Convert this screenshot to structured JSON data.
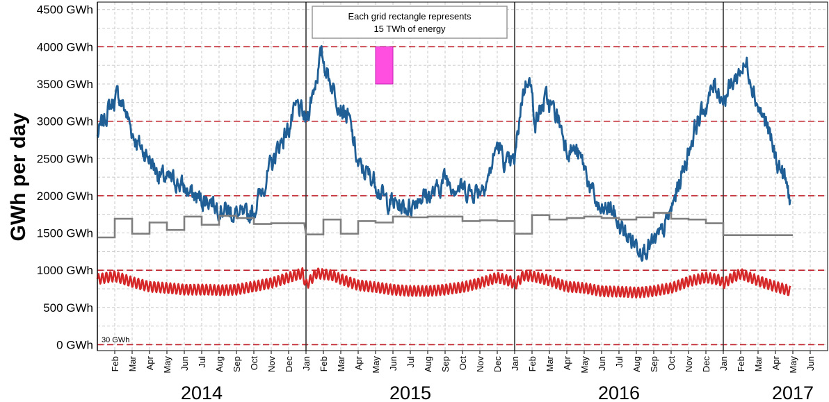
{
  "chart_data": {
    "type": "line",
    "title": "",
    "ylabel": "GWh per day",
    "xlabel": "",
    "ylim": [
      -80,
      4600
    ],
    "xlim_months": [
      0,
      42
    ],
    "grid": true,
    "yticks": [
      {
        "value": 0,
        "label": "0 GWh"
      },
      {
        "value": 500,
        "label": "500 GWh"
      },
      {
        "value": 1000,
        "label": "1000 GWh"
      },
      {
        "value": 1500,
        "label": "1500 GWh"
      },
      {
        "value": 2000,
        "label": "2000 GWh"
      },
      {
        "value": 2500,
        "label": "2500 GWh"
      },
      {
        "value": 3000,
        "label": "3000 GWh"
      },
      {
        "value": 3500,
        "label": "3500 GWh"
      },
      {
        "value": 4000,
        "label": "4000 GWh"
      },
      {
        "value": 4500,
        "label": "4500 GWh"
      }
    ],
    "red_dashed_lines": [
      0,
      1000,
      2000,
      3000,
      4000
    ],
    "year_dividers": [
      0,
      12,
      24,
      36
    ],
    "month_ticks": [
      {
        "m": 1,
        "label": "Feb"
      },
      {
        "m": 2,
        "label": "Mar"
      },
      {
        "m": 3,
        "label": "Apr"
      },
      {
        "m": 4,
        "label": "May"
      },
      {
        "m": 5,
        "label": "Jun"
      },
      {
        "m": 6,
        "label": "Jul"
      },
      {
        "m": 7,
        "label": "Aug"
      },
      {
        "m": 8,
        "label": "Sep"
      },
      {
        "m": 9,
        "label": "Oct"
      },
      {
        "m": 10,
        "label": "Nov"
      },
      {
        "m": 11,
        "label": "Dec"
      },
      {
        "m": 12,
        "label": "Jan"
      },
      {
        "m": 13,
        "label": "Feb"
      },
      {
        "m": 14,
        "label": "Mar"
      },
      {
        "m": 15,
        "label": "Apr"
      },
      {
        "m": 16,
        "label": "May"
      },
      {
        "m": 17,
        "label": "Jun"
      },
      {
        "m": 18,
        "label": "Jul"
      },
      {
        "m": 19,
        "label": "Aug"
      },
      {
        "m": 20,
        "label": "Sep"
      },
      {
        "m": 21,
        "label": "Oct"
      },
      {
        "m": 22,
        "label": "Nov"
      },
      {
        "m": 23,
        "label": "Dec"
      },
      {
        "m": 24,
        "label": "Jan"
      },
      {
        "m": 25,
        "label": "Feb"
      },
      {
        "m": 26,
        "label": "Mar"
      },
      {
        "m": 27,
        "label": "Apr"
      },
      {
        "m": 28,
        "label": "May"
      },
      {
        "m": 29,
        "label": "Jun"
      },
      {
        "m": 30,
        "label": "Jul"
      },
      {
        "m": 31,
        "label": "Aug"
      },
      {
        "m": 32,
        "label": "Sep"
      },
      {
        "m": 33,
        "label": "Oct"
      },
      {
        "m": 34,
        "label": "Nov"
      },
      {
        "m": 35,
        "label": "Dec"
      },
      {
        "m": 36,
        "label": "Jan"
      },
      {
        "m": 37,
        "label": "Feb"
      },
      {
        "m": 38,
        "label": "Mar"
      },
      {
        "m": 39,
        "label": "Apr"
      },
      {
        "m": 40,
        "label": "May"
      },
      {
        "m": 41,
        "label": "Jun"
      }
    ],
    "year_labels": [
      {
        "m": 6,
        "label": "2014"
      },
      {
        "m": 18,
        "label": "2015"
      },
      {
        "m": 30,
        "label": "2016"
      },
      {
        "m": 40,
        "label": "2017"
      }
    ],
    "annotation": {
      "line1": "Each grid rectangle represents",
      "line2": "15 TWh of energy"
    },
    "corner_note": "30 GWh",
    "highlight_rect": {
      "x0": 16.0,
      "x1": 17.0,
      "y0": 3500,
      "y1": 4000,
      "color": "#ff4fe0"
    },
    "series": [
      {
        "color": "#1f5f96",
        "kind": "noisy",
        "noise": 220,
        "points": [
          [
            0,
            2800
          ],
          [
            0.7,
            3200
          ],
          [
            1.2,
            3350
          ],
          [
            1.6,
            3150
          ],
          [
            2.1,
            2800
          ],
          [
            2.5,
            2650
          ],
          [
            3,
            2500
          ],
          [
            3.5,
            2300
          ],
          [
            4,
            2200
          ],
          [
            4.5,
            2200
          ],
          [
            5,
            2100
          ],
          [
            5.5,
            2000
          ],
          [
            6,
            1950
          ],
          [
            6.5,
            1950
          ],
          [
            7,
            1850
          ],
          [
            7.5,
            1800
          ],
          [
            8,
            1750
          ],
          [
            8.5,
            1700
          ],
          [
            9,
            1800
          ],
          [
            9.5,
            2100
          ],
          [
            10,
            2400
          ],
          [
            10.5,
            2700
          ],
          [
            11,
            2900
          ],
          [
            11.5,
            3200
          ],
          [
            12,
            3000
          ],
          [
            12.5,
            3500
          ],
          [
            12.9,
            3900
          ],
          [
            13.3,
            3600
          ],
          [
            14,
            3200
          ],
          [
            14.5,
            3000
          ],
          [
            15,
            2400
          ],
          [
            15.5,
            2300
          ],
          [
            16,
            2200
          ],
          [
            16.5,
            1950
          ],
          [
            17,
            1900
          ],
          [
            17.5,
            1850
          ],
          [
            18,
            1850
          ],
          [
            18.5,
            2000
          ],
          [
            19,
            2000
          ],
          [
            19.5,
            2050
          ],
          [
            20,
            2250
          ],
          [
            20.5,
            2150
          ],
          [
            21,
            2100
          ],
          [
            21.5,
            2050
          ],
          [
            22,
            2100
          ],
          [
            22.5,
            2250
          ],
          [
            23,
            2700
          ],
          [
            23.5,
            2400
          ],
          [
            24,
            2450
          ],
          [
            24.4,
            3300
          ],
          [
            24.8,
            3650
          ],
          [
            25.2,
            3000
          ],
          [
            25.8,
            3300
          ],
          [
            26.5,
            3050
          ],
          [
            27,
            2650
          ],
          [
            27.5,
            2600
          ],
          [
            28,
            2400
          ],
          [
            28.5,
            2000
          ],
          [
            29,
            1750
          ],
          [
            29.5,
            1850
          ],
          [
            30,
            1600
          ],
          [
            30.5,
            1450
          ],
          [
            31,
            1350
          ],
          [
            31.5,
            1300
          ],
          [
            32,
            1350
          ],
          [
            32.5,
            1500
          ],
          [
            33,
            1800
          ],
          [
            33.5,
            2200
          ],
          [
            34,
            2600
          ],
          [
            34.5,
            3000
          ],
          [
            35,
            3200
          ],
          [
            35.5,
            3500
          ],
          [
            36,
            3300
          ],
          [
            36.5,
            3500
          ],
          [
            37,
            3700
          ],
          [
            37.4,
            3750
          ],
          [
            38,
            3200
          ],
          [
            38.5,
            2950
          ],
          [
            39,
            2500
          ],
          [
            39.5,
            2250
          ],
          [
            39.85,
            1950
          ]
        ]
      },
      {
        "color": "#7f7f7f",
        "kind": "step",
        "points": [
          [
            0,
            1440
          ],
          [
            1,
            1440
          ],
          [
            1,
            1690
          ],
          [
            2,
            1690
          ],
          [
            2,
            1490
          ],
          [
            3,
            1490
          ],
          [
            3,
            1640
          ],
          [
            4,
            1640
          ],
          [
            4,
            1540
          ],
          [
            5,
            1540
          ],
          [
            5,
            1720
          ],
          [
            6,
            1720
          ],
          [
            6,
            1610
          ],
          [
            7,
            1610
          ],
          [
            7,
            1730
          ],
          [
            8,
            1730
          ],
          [
            8,
            1700
          ],
          [
            9,
            1700
          ],
          [
            9,
            1620
          ],
          [
            10,
            1620
          ],
          [
            10,
            1630
          ],
          [
            11.9,
            1630
          ],
          [
            12,
            1480
          ],
          [
            13,
            1480
          ],
          [
            13,
            1680
          ],
          [
            14,
            1680
          ],
          [
            14,
            1490
          ],
          [
            15,
            1490
          ],
          [
            15,
            1660
          ],
          [
            16,
            1660
          ],
          [
            16,
            1640
          ],
          [
            17,
            1640
          ],
          [
            17,
            1720
          ],
          [
            18,
            1720
          ],
          [
            18,
            1710
          ],
          [
            19,
            1710
          ],
          [
            19,
            1720
          ],
          [
            21,
            1720
          ],
          [
            21,
            1660
          ],
          [
            22,
            1660
          ],
          [
            22,
            1670
          ],
          [
            23,
            1670
          ],
          [
            23,
            1660
          ],
          [
            24,
            1660
          ],
          [
            24,
            1490
          ],
          [
            25,
            1490
          ],
          [
            25,
            1740
          ],
          [
            26,
            1740
          ],
          [
            26,
            1680
          ],
          [
            27,
            1680
          ],
          [
            27,
            1700
          ],
          [
            28,
            1700
          ],
          [
            28,
            1720
          ],
          [
            29,
            1720
          ],
          [
            29,
            1700
          ],
          [
            30,
            1700
          ],
          [
            30,
            1680
          ],
          [
            31,
            1680
          ],
          [
            31,
            1710
          ],
          [
            32,
            1710
          ],
          [
            32,
            1770
          ],
          [
            33,
            1770
          ],
          [
            33,
            1690
          ],
          [
            34,
            1690
          ],
          [
            34,
            1680
          ],
          [
            35,
            1680
          ],
          [
            35,
            1630
          ],
          [
            36,
            1630
          ],
          [
            36,
            1470
          ],
          [
            40,
            1470
          ]
        ]
      },
      {
        "color": "#d62728",
        "kind": "wavy",
        "amplitude": 70,
        "period": 0.23,
        "points": [
          [
            0,
            880
          ],
          [
            1,
            920
          ],
          [
            2,
            840
          ],
          [
            3,
            780
          ],
          [
            4,
            760
          ],
          [
            5,
            740
          ],
          [
            6,
            740
          ],
          [
            7,
            730
          ],
          [
            8,
            740
          ],
          [
            9,
            780
          ],
          [
            10,
            830
          ],
          [
            11,
            900
          ],
          [
            11.8,
            960
          ],
          [
            12,
            800
          ],
          [
            12.6,
            960
          ],
          [
            13.5,
            930
          ],
          [
            14,
            880
          ],
          [
            15,
            800
          ],
          [
            16,
            770
          ],
          [
            17,
            740
          ],
          [
            18,
            720
          ],
          [
            19,
            720
          ],
          [
            20,
            740
          ],
          [
            21,
            770
          ],
          [
            22,
            830
          ],
          [
            23,
            900
          ],
          [
            23.8,
            850
          ],
          [
            24,
            800
          ],
          [
            24.5,
            930
          ],
          [
            25,
            920
          ],
          [
            26,
            860
          ],
          [
            27,
            780
          ],
          [
            28,
            760
          ],
          [
            29,
            720
          ],
          [
            30,
            710
          ],
          [
            31,
            700
          ],
          [
            32,
            720
          ],
          [
            33,
            760
          ],
          [
            34,
            850
          ],
          [
            35,
            900
          ],
          [
            35.8,
            870
          ],
          [
            36,
            820
          ],
          [
            36.5,
            900
          ],
          [
            37,
            950
          ],
          [
            38,
            860
          ],
          [
            39,
            780
          ],
          [
            39.85,
            720
          ]
        ]
      }
    ]
  }
}
